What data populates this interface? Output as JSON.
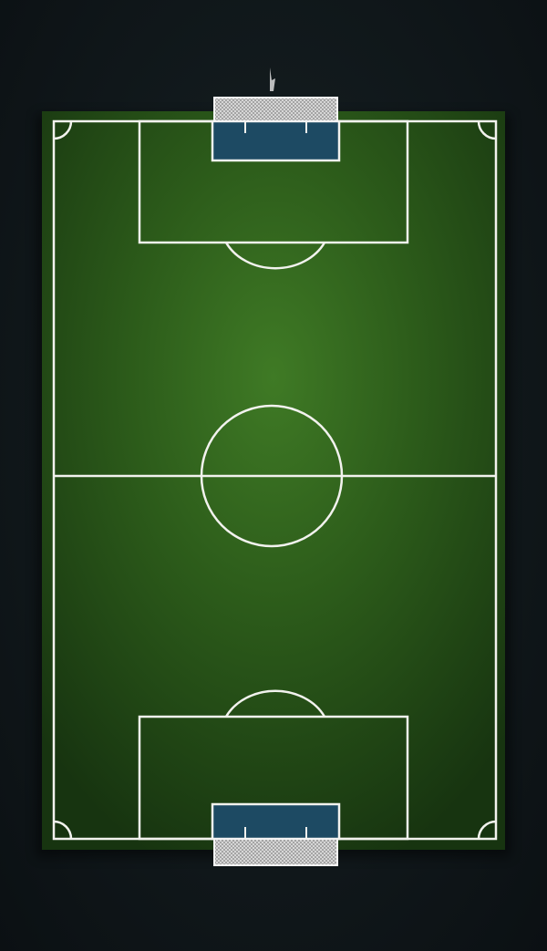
{
  "scene": {
    "subject": "",
    "colors": {
      "background": "#0f1518",
      "turf_light": "#3f7a25",
      "turf_mid": "#2c5b1a",
      "turf_dark": "#173410",
      "lines": "#f2f2ee",
      "goal_floor": "#1d4a63",
      "goal_net": "#d8d8d8"
    }
  }
}
